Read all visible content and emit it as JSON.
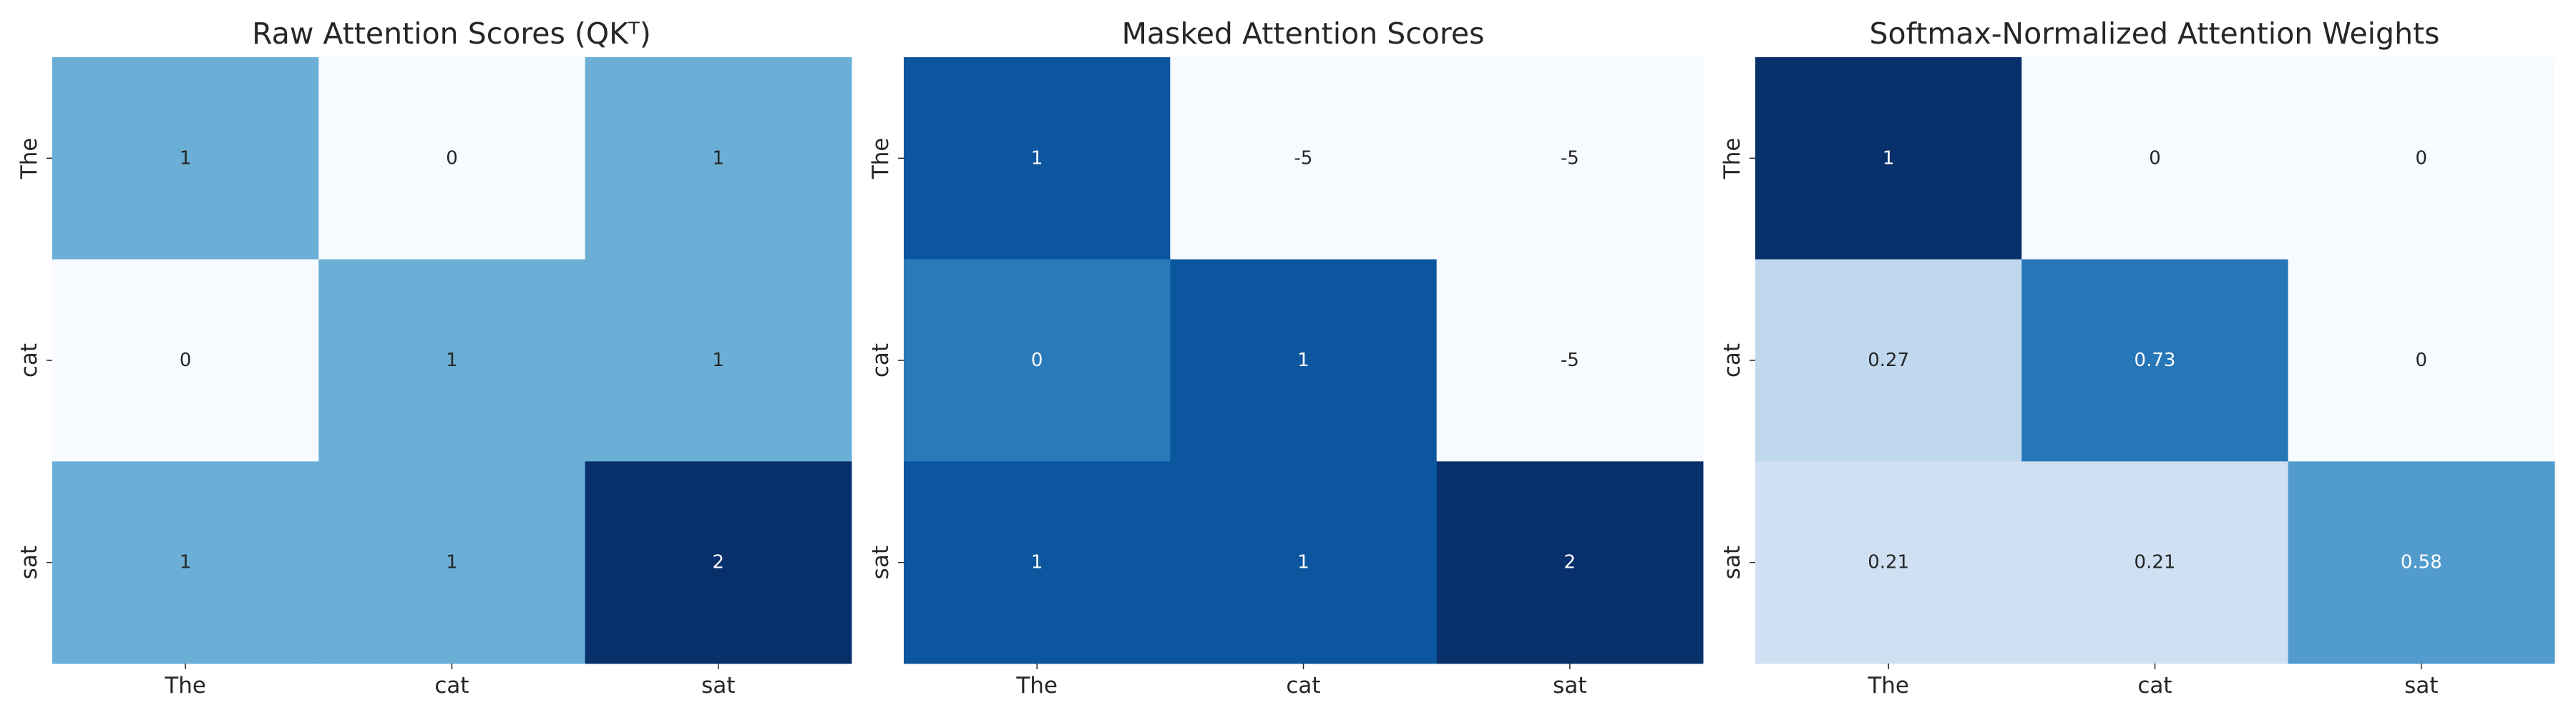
{
  "chart_data": [
    {
      "type": "heatmap",
      "title": "Raw Attention Scores (QKᵀ)",
      "x_tick_labels": [
        "The",
        "cat",
        "sat"
      ],
      "y_tick_labels": [
        "The",
        "cat",
        "sat"
      ],
      "values": [
        [
          1,
          0,
          1
        ],
        [
          0,
          1,
          1
        ],
        [
          1,
          1,
          2
        ]
      ],
      "value_labels": [
        [
          "1",
          "0",
          "1"
        ],
        [
          "0",
          "1",
          "1"
        ],
        [
          "1",
          "1",
          "2"
        ]
      ],
      "colormap": "Blues",
      "vmin": 0,
      "vmax": 2,
      "colorbar": false,
      "grid": false
    },
    {
      "type": "heatmap",
      "title": "Masked Attention Scores",
      "x_tick_labels": [
        "The",
        "cat",
        "sat"
      ],
      "y_tick_labels": [
        "The",
        "cat",
        "sat"
      ],
      "values": [
        [
          1,
          -5,
          -5
        ],
        [
          0,
          1,
          -5
        ],
        [
          1,
          1,
          2
        ]
      ],
      "value_labels": [
        [
          "1",
          "-5",
          "-5"
        ],
        [
          "0",
          "1",
          "-5"
        ],
        [
          "1",
          "1",
          "2"
        ]
      ],
      "colormap": "Blues",
      "vmin": -5,
      "vmax": 2,
      "colorbar": false,
      "grid": false
    },
    {
      "type": "heatmap",
      "title": "Softmax-Normalized Attention Weights",
      "x_tick_labels": [
        "The",
        "cat",
        "sat"
      ],
      "y_tick_labels": [
        "The",
        "cat",
        "sat"
      ],
      "values": [
        [
          1,
          0,
          0
        ],
        [
          0.27,
          0.73,
          0
        ],
        [
          0.21,
          0.21,
          0.58
        ]
      ],
      "value_labels": [
        [
          "1",
          "0",
          "0"
        ],
        [
          "0.27",
          "0.73",
          "0"
        ],
        [
          "0.21",
          "0.21",
          "0.58"
        ]
      ],
      "colormap": "Blues",
      "vmin": 0,
      "vmax": 1,
      "colorbar": false,
      "grid": false
    }
  ],
  "colors": {
    "blues_scale": [
      "#f7fbff",
      "#deebf7",
      "#c6dbef",
      "#9ecae1",
      "#6baed6",
      "#4292c6",
      "#2171b5",
      "#08519c",
      "#08306b"
    ],
    "text": "#262626"
  }
}
